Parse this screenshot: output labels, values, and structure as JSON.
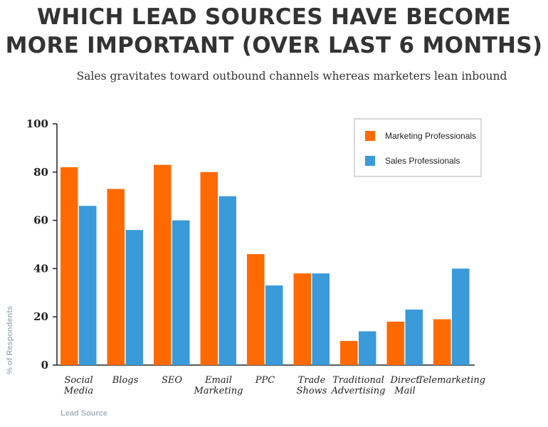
{
  "header": {
    "title_line1": "WHICH LEAD SOURCES HAVE BECOME",
    "title_line2": "MORE IMPORTANT (OVER LAST 6 MONTHS)",
    "subtitle": "Sales gravitates toward outbound channels whereas marketers lean inbound"
  },
  "colors": {
    "marketing": "#ff6a00",
    "sales": "#3b9ad9",
    "axis": "#222222"
  },
  "chart_data": {
    "type": "bar",
    "title": "WHICH LEAD SOURCES HAVE BECOME MORE IMPORTANT (OVER LAST 6 MONTHS)",
    "subtitle": "Sales gravitates toward outbound channels whereas marketers lean inbound",
    "xlabel": "Lead Source",
    "ylabel": "% of Respondents",
    "ylim": [
      0,
      100
    ],
    "yticks": [
      0,
      20,
      40,
      60,
      80,
      100
    ],
    "legend_position": "top-right",
    "categories": [
      [
        "Social",
        "Media"
      ],
      [
        "Blogs"
      ],
      [
        "SEO"
      ],
      [
        "Email",
        "Marketing"
      ],
      [
        "PPC"
      ],
      [
        "Trade",
        "Shows"
      ],
      [
        "Traditional",
        "Advertising"
      ],
      [
        "Direct",
        "Mail"
      ],
      [
        "Telemarketing"
      ]
    ],
    "series": [
      {
        "name": "Marketing Professionals",
        "values": [
          82,
          73,
          83,
          80,
          46,
          38,
          10,
          18,
          19
        ]
      },
      {
        "name": "Sales Professionals",
        "values": [
          66,
          56,
          60,
          70,
          33,
          38,
          14,
          23,
          40
        ]
      }
    ]
  }
}
